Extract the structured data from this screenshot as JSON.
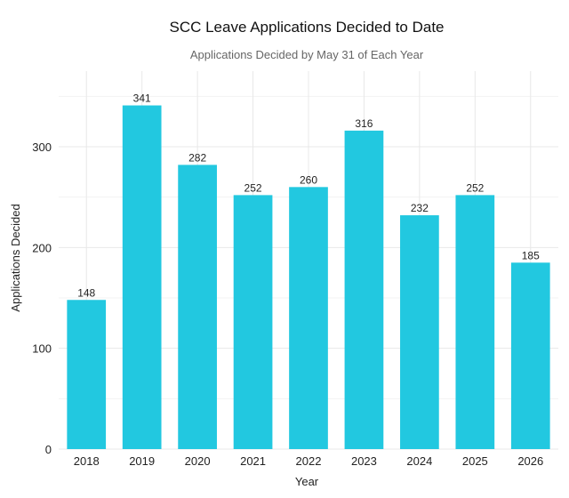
{
  "chart_data": {
    "type": "bar",
    "title": "SCC Leave Applications Decided to Date",
    "subtitle": "Applications Decided by May 31 of Each Year",
    "xlabel": "Year",
    "ylabel": "Applications Decided",
    "categories": [
      "2018",
      "2019",
      "2020",
      "2021",
      "2022",
      "2023",
      "2024",
      "2025",
      "2026"
    ],
    "values": [
      148,
      341,
      282,
      252,
      260,
      316,
      232,
      252,
      185
    ],
    "ylim": [
      0,
      375
    ],
    "yticks": [
      0,
      100,
      200,
      300
    ],
    "grid": true,
    "bar_color": "#22C8E0",
    "show_data_labels": true
  }
}
